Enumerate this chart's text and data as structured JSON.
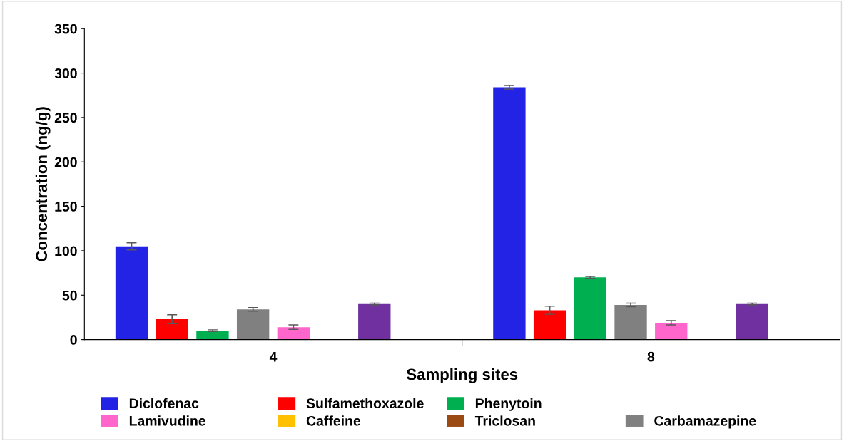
{
  "chart_data": {
    "type": "bar",
    "xlabel": "Sampling sites",
    "ylabel": "Concentration (ng/g)",
    "categories": [
      "4",
      "8"
    ],
    "series": [
      {
        "name": "Diclofenac",
        "color": "#2323e6",
        "values": [
          105,
          284
        ],
        "errors": [
          4,
          2
        ]
      },
      {
        "name": "Sulfamethoxazole",
        "color": "#ff0000",
        "values": [
          23,
          33
        ],
        "errors": [
          5,
          4.5
        ]
      },
      {
        "name": "Phenytoin",
        "color": "#00b050",
        "values": [
          10,
          70
        ],
        "errors": [
          1,
          1
        ]
      },
      {
        "name": "Carbamazepine",
        "color": "#808080",
        "values": [
          34,
          39
        ],
        "errors": [
          2,
          2
        ]
      },
      {
        "name": "Lamivudine",
        "color": "#ff66cc",
        "values": [
          14,
          19
        ],
        "errors": [
          2.5,
          2.5
        ]
      },
      {
        "name": "Caffeine",
        "color": "#ffc000",
        "values": [
          null,
          null
        ]
      },
      {
        "color": "#7030a0",
        "values": [
          40,
          40
        ],
        "errors": [
          1,
          1
        ]
      },
      {
        "name": "Triclosan",
        "color": "#9c4a14",
        "values": [
          null,
          null
        ]
      }
    ],
    "ylim": [
      0,
      350
    ],
    "yticks": [
      0,
      50,
      100,
      150,
      200,
      250,
      300,
      350
    ],
    "grid": false,
    "legend": "bottom"
  }
}
